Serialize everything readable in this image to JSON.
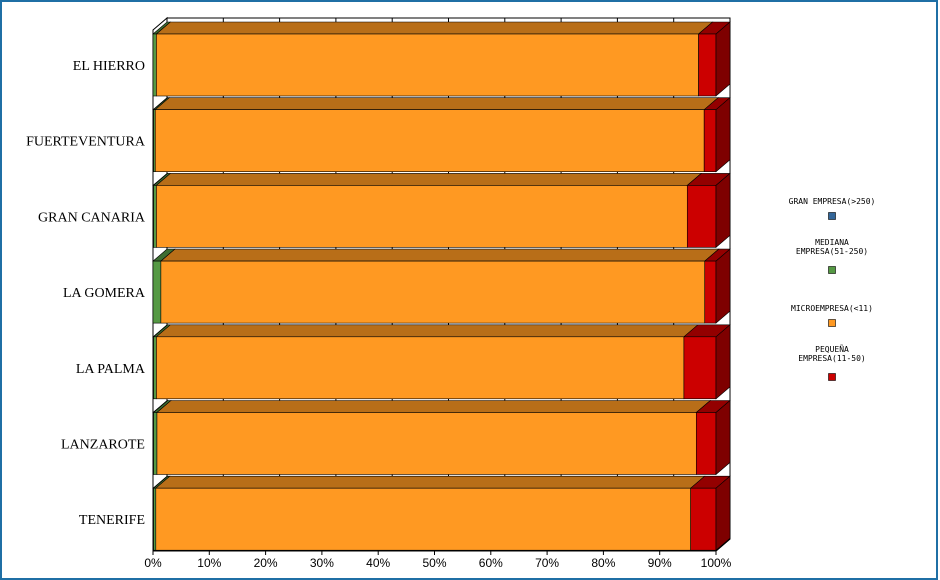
{
  "chart_data": {
    "type": "bar",
    "orientation": "horizontal",
    "stacked": true,
    "normalized": true,
    "categories": [
      "EL HIERRO",
      "FUERTEVENTURA",
      "GRAN CANARIA",
      "LA GOMERA",
      "LA PALMA",
      "LANZAROTE",
      "TENERIFE"
    ],
    "series": [
      {
        "name": "GRAN EMPRESA(>250)",
        "color": "#336699",
        "values": [
          0.0,
          0.1,
          0.1,
          0.0,
          0.1,
          0.1,
          0.1
        ]
      },
      {
        "name": "MEDIANA EMPRESA(51-250)",
        "color": "#559944",
        "values": [
          0.6,
          0.3,
          0.5,
          1.4,
          0.5,
          0.6,
          0.4
        ]
      },
      {
        "name": "MICROEMPRESA(<11)",
        "color": "#ff9922",
        "values": [
          96.3,
          97.5,
          94.3,
          96.6,
          93.7,
          95.8,
          95.0
        ]
      },
      {
        "name": "PEQUEÑA EMPRESA(11-50)",
        "color": "#cc0000",
        "values": [
          3.1,
          2.1,
          5.1,
          2.0,
          5.7,
          3.5,
          4.5
        ]
      }
    ],
    "xlim": [
      0,
      100
    ],
    "xticks": [
      "0%",
      "10%",
      "20%",
      "30%",
      "40%",
      "50%",
      "60%",
      "70%",
      "80%",
      "90%",
      "100%"
    ],
    "legend_position": "right",
    "legend_entries": [
      [
        "GRAN EMPRESA(>250)"
      ],
      [
        "MEDIANA",
        "EMPRESA(51-250)"
      ],
      [
        "MICROEMPRESA(<11)"
      ],
      [
        "PEQUEÑA",
        "EMPRESA(11-50)"
      ]
    ],
    "grid": true
  }
}
